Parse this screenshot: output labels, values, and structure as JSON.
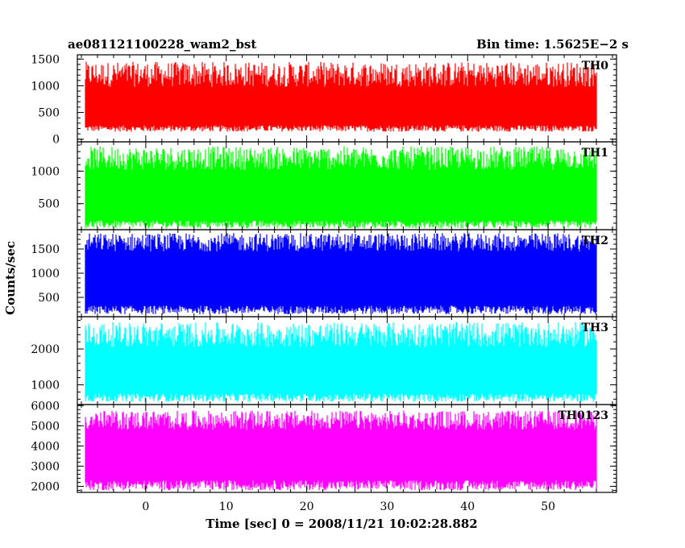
{
  "chart_data": {
    "type": "line",
    "title_left": "ae081121100228_wam2_bst",
    "title_right": "Bin time: 1.5625E−2 s",
    "xlabel": "Time [sec] 0 = 2008/11/21 10:02:28.882",
    "ylabel": "Counts/sec",
    "xlim": [
      -8.5,
      58.5
    ],
    "x_ticks": [
      0,
      10,
      20,
      30,
      40,
      50
    ],
    "x_tick_labels": [
      "0",
      "10",
      "20",
      "30",
      "40",
      "50"
    ],
    "data_x_range": [
      -7.5,
      56
    ],
    "bin_time_s": 0.015625,
    "panels": [
      {
        "name": "TH0",
        "color": "#ff0000",
        "ylim": [
          -50,
          1580
        ],
        "y_ticks": [
          0,
          500,
          1000,
          1500
        ],
        "y_tick_labels": [
          "0",
          "500",
          "1000",
          "1500"
        ],
        "mean": 600,
        "low_envelope": [
          140,
          260
        ],
        "high_envelope": [
          980,
          1450
        ]
      },
      {
        "name": "TH1",
        "color": "#00ff00",
        "ylim": [
          100,
          1450
        ],
        "y_ticks": [
          500,
          1000
        ],
        "y_tick_labels": [
          "500",
          "1000"
        ],
        "mean": 700,
        "low_envelope": [
          120,
          240
        ],
        "high_envelope": [
          1020,
          1380
        ]
      },
      {
        "name": "TH2",
        "color": "#0000ff",
        "ylim": [
          100,
          1900
        ],
        "y_ticks": [
          500,
          1000,
          1500
        ],
        "y_tick_labels": [
          "500",
          "1000",
          "1500"
        ],
        "mean": 850,
        "low_envelope": [
          150,
          330
        ],
        "high_envelope": [
          1450,
          1830
        ]
      },
      {
        "name": "TH3",
        "color": "#00ffff",
        "ylim": [
          450,
          2900
        ],
        "y_ticks": [
          1000,
          2000
        ],
        "y_tick_labels": [
          "1000",
          "2000"
        ],
        "mean": 1300,
        "low_envelope": [
          520,
          760
        ],
        "high_envelope": [
          2050,
          2750
        ]
      },
      {
        "name": "TH0123",
        "color": "#ff00ff",
        "ylim": [
          1700,
          6050
        ],
        "y_ticks": [
          2000,
          3000,
          4000,
          5000,
          6000
        ],
        "y_tick_labels": [
          "2000",
          "3000",
          "4000",
          "5000",
          "6000"
        ],
        "mean": 3500,
        "low_envelope": [
          1800,
          2300
        ],
        "high_envelope": [
          4800,
          5750
        ]
      }
    ]
  }
}
